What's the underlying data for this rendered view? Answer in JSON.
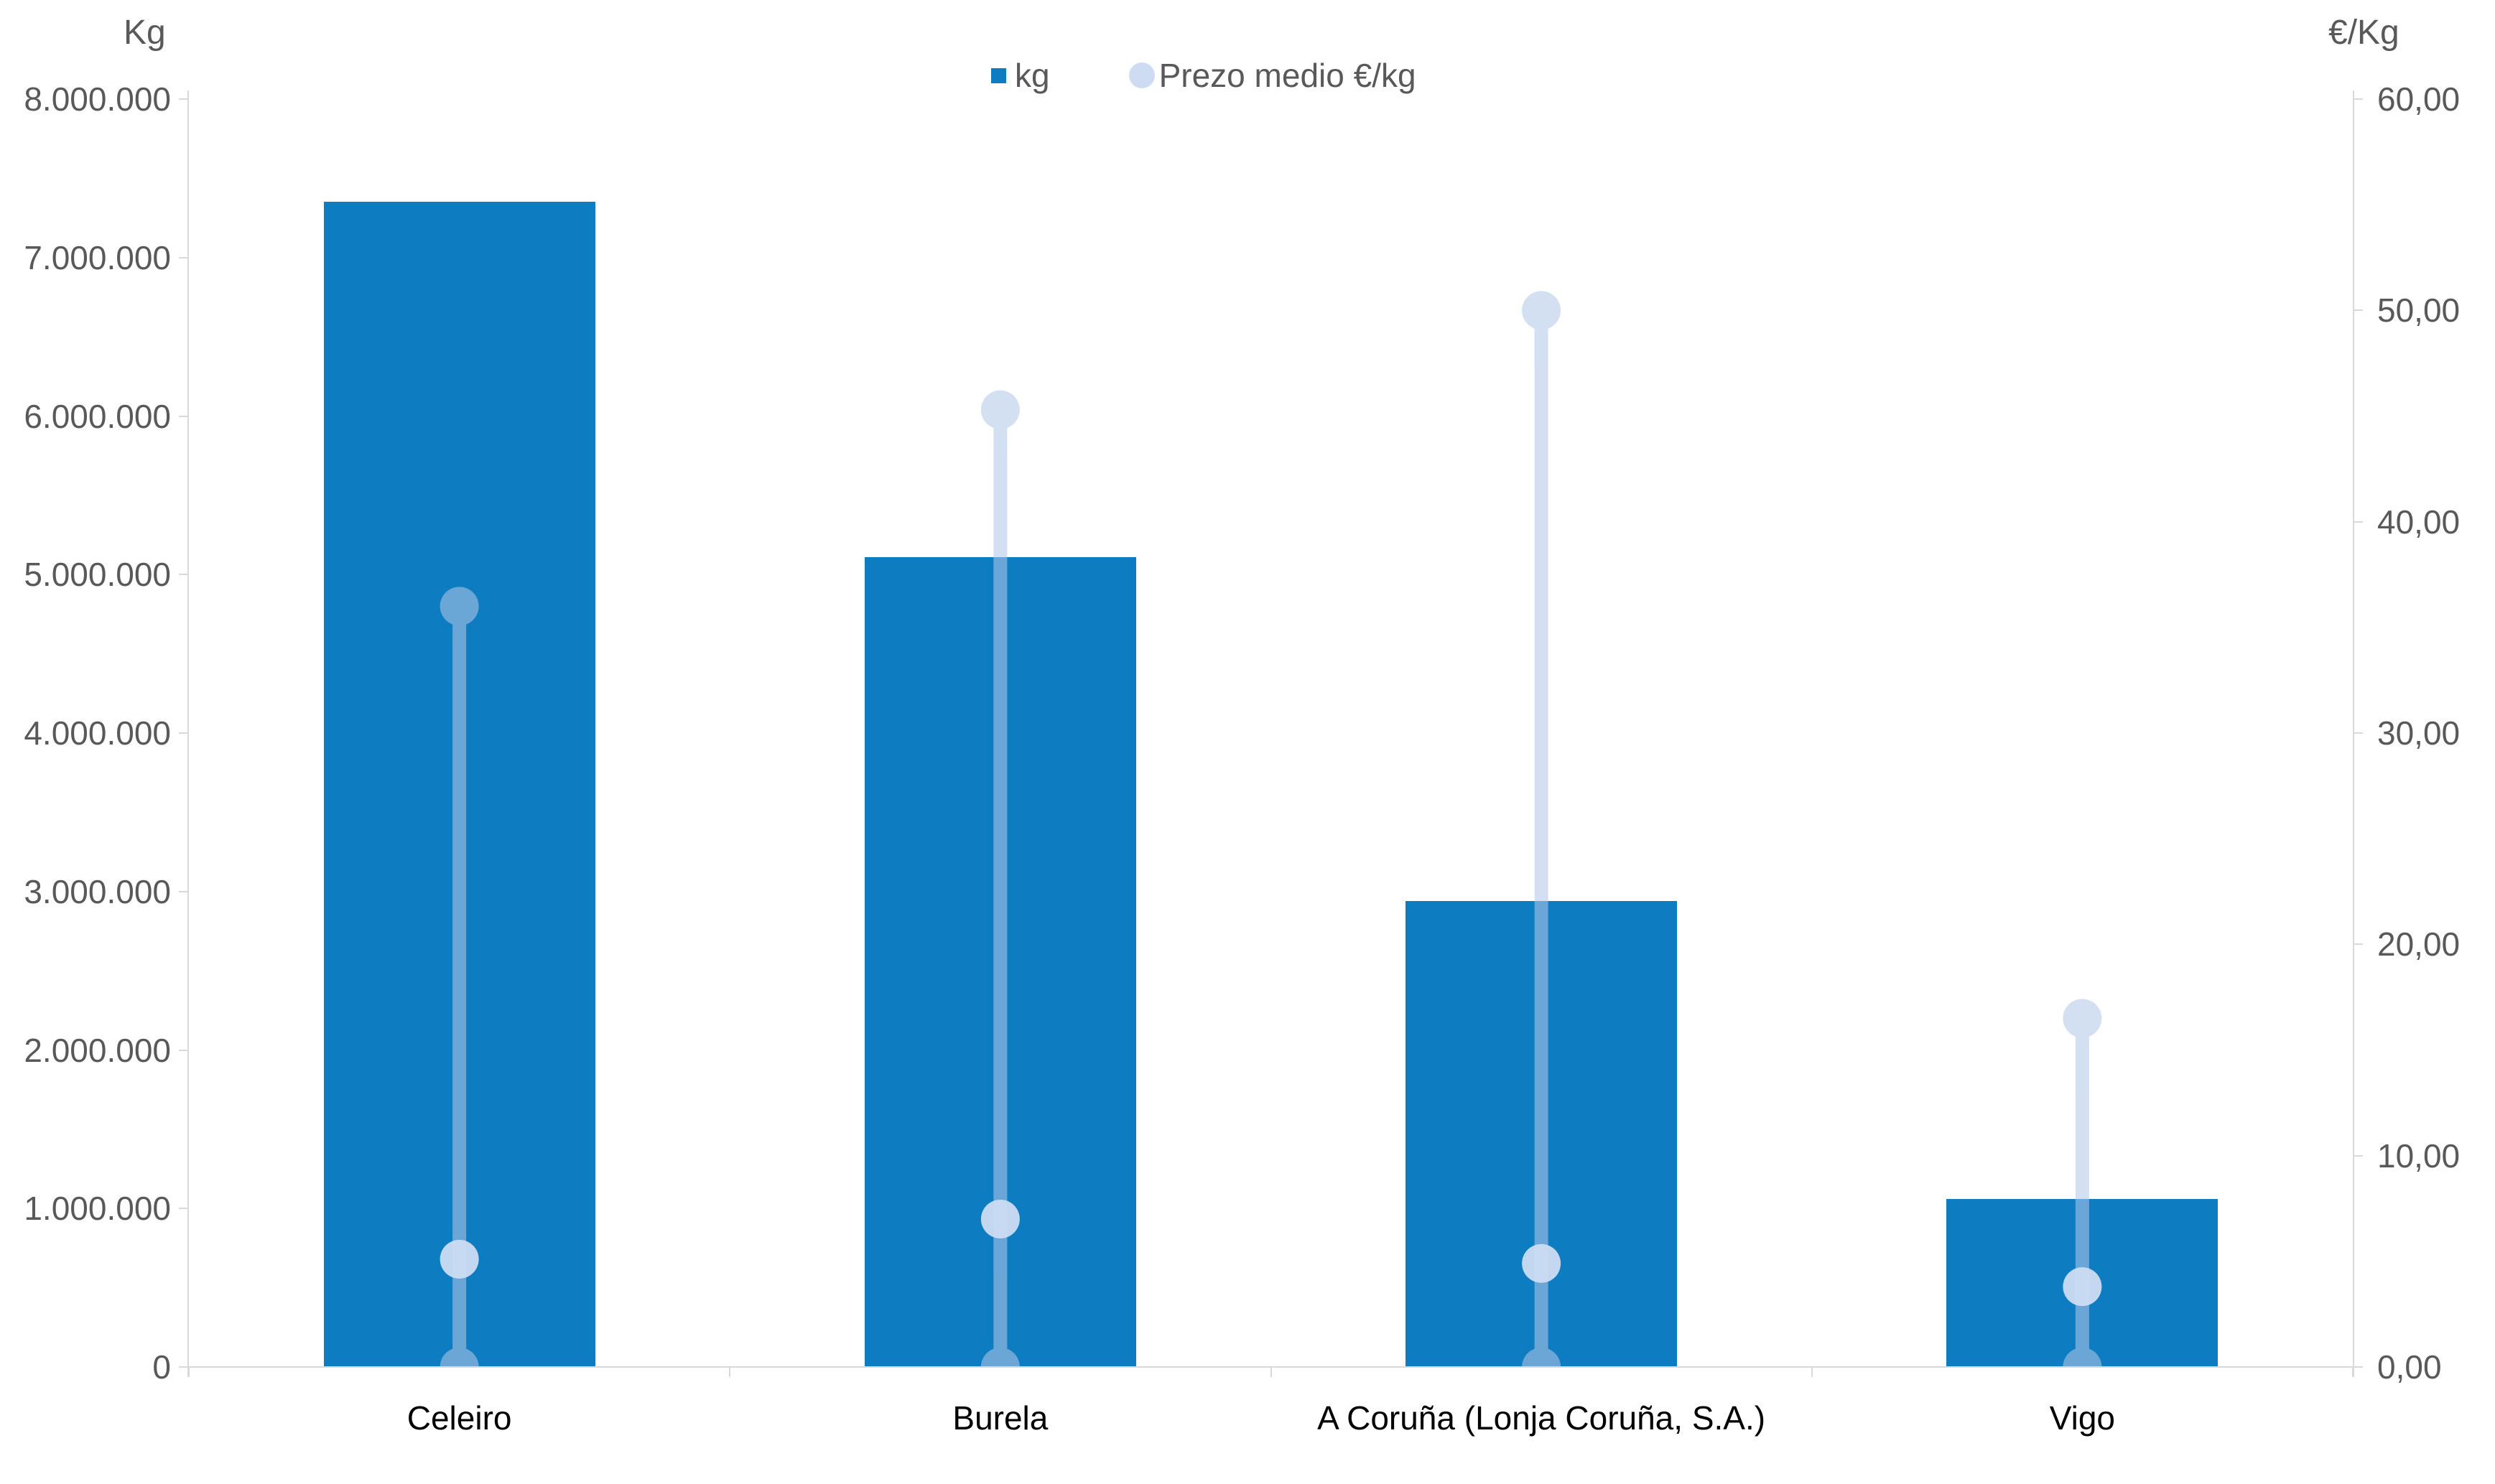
{
  "header": {
    "left_axis_title": "Kg",
    "right_axis_title": "€/Kg"
  },
  "legend": {
    "kg_label": "kg",
    "price_label": "Prezo medio €/kg"
  },
  "chart_data": {
    "type": "bar",
    "subtype": "combo-dual-axis-bars-with-lollipop-price-dots",
    "title": "",
    "categories": [
      "Celeiro",
      "Burela",
      "A Coruña (Lonja Coruña, S.A.)",
      "Vigo"
    ],
    "series": [
      {
        "name": "kg",
        "type": "bar",
        "axis": "left",
        "values": [
          7350000,
          5110000,
          2940000,
          1060000
        ]
      },
      {
        "name": "Prezo medio €/kg",
        "type": "scatter-lollipop",
        "axis": "right",
        "stem_from": 0,
        "points_per_category": [
          [
            36.0,
            5.1,
            0
          ],
          [
            45.3,
            7.0,
            0
          ],
          [
            50.0,
            4.9,
            0
          ],
          [
            16.5,
            3.8,
            0
          ]
        ]
      }
    ],
    "left_axis": {
      "title": "Kg",
      "min": 0,
      "max": 8000000,
      "step": 1000000,
      "tick_labels": [
        "8.000.000",
        "7.000.000",
        "6.000.000",
        "5.000.000",
        "4.000.000",
        "3.000.000",
        "2.000.000",
        "1.000.000",
        "0"
      ]
    },
    "right_axis": {
      "title": "€/Kg",
      "min": 0,
      "max": 60,
      "step": 10,
      "tick_labels": [
        "60,00",
        "50,00",
        "40,00",
        "30,00",
        "20,00",
        "10,00",
        "0,00"
      ]
    },
    "grid": false,
    "legend_position": "top-center",
    "colors": {
      "bar": "#0e7cc1",
      "stem": "#b2c8e8",
      "stem_opacity": 0.56,
      "mid_dot": "#cddcf2",
      "mid_dot_opacity": 0.95,
      "axis_line": "#d9d9d9",
      "tick_text": "#595959",
      "category_text": "#000000",
      "legend_text": "#595959"
    }
  }
}
